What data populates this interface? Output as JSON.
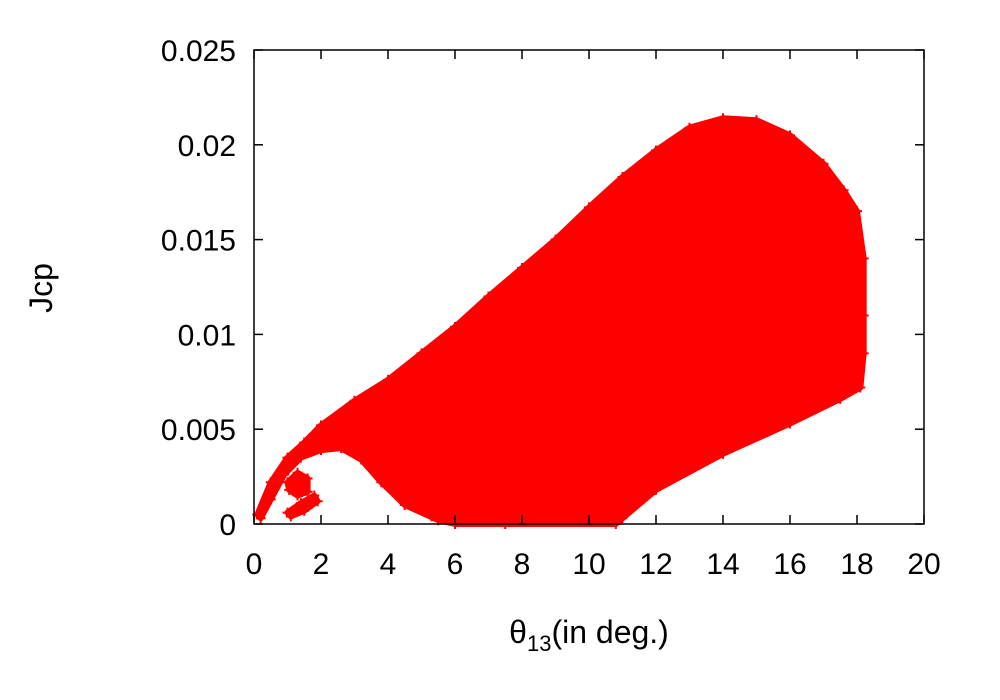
{
  "chart_data": {
    "type": "scatter",
    "title": "",
    "xlabel": {
      "symbol": "θ",
      "subscript": "13",
      "suffix": "(in deg.)"
    },
    "ylabel": "Jcp",
    "xlim": [
      0,
      20
    ],
    "ylim": [
      0,
      0.025
    ],
    "x_ticks": [
      "0",
      "2",
      "4",
      "6",
      "8",
      "10",
      "12",
      "14",
      "16",
      "18",
      "20"
    ],
    "y_ticks": [
      "0",
      "0.005",
      "0.01",
      "0.015",
      "0.02",
      "0.025"
    ],
    "grid": false,
    "legend": "none",
    "marker": "+",
    "color": "#ff0000",
    "series": [
      {
        "region": "main",
        "outline": [
          [
            0.1,
            0.0005
          ],
          [
            0.5,
            0.0022
          ],
          [
            1.0,
            0.0035
          ],
          [
            1.5,
            0.0043
          ],
          [
            2.0,
            0.0052
          ],
          [
            3.0,
            0.0065
          ],
          [
            4.0,
            0.0076
          ],
          [
            5.0,
            0.009
          ],
          [
            6.0,
            0.0104
          ],
          [
            7.0,
            0.012
          ],
          [
            8.0,
            0.0135
          ],
          [
            9.0,
            0.015
          ],
          [
            10.0,
            0.0167
          ],
          [
            11.0,
            0.0183
          ],
          [
            12.0,
            0.0197
          ],
          [
            13.0,
            0.0209
          ],
          [
            14.0,
            0.0214
          ],
          [
            15.0,
            0.0213
          ],
          [
            16.0,
            0.0205
          ],
          [
            17.0,
            0.019
          ],
          [
            17.6,
            0.0176
          ],
          [
            18.0,
            0.0165
          ],
          [
            18.2,
            0.014
          ],
          [
            18.2,
            0.011
          ],
          [
            18.2,
            0.009
          ],
          [
            18.1,
            0.0072
          ],
          [
            17.5,
            0.0066
          ],
          [
            16.0,
            0.0053
          ],
          [
            14.0,
            0.0037
          ],
          [
            12.0,
            0.0018
          ],
          [
            11.0,
            0.0003
          ],
          [
            10.8,
            0.0
          ],
          [
            7.5,
            0.0
          ],
          [
            6.0,
            0.0
          ],
          [
            5.5,
            0.0002
          ],
          [
            4.5,
            0.001
          ],
          [
            3.8,
            0.0022
          ],
          [
            3.2,
            0.0034
          ],
          [
            2.6,
            0.004
          ],
          [
            2.0,
            0.0039
          ],
          [
            1.4,
            0.0035
          ],
          [
            0.9,
            0.0026
          ],
          [
            0.5,
            0.0013
          ],
          [
            0.2,
            0.0003
          ]
        ]
      },
      {
        "region": "island-1",
        "outline": [
          [
            1.0,
            0.0022
          ],
          [
            1.3,
            0.0027
          ],
          [
            1.6,
            0.0024
          ],
          [
            1.6,
            0.0017
          ],
          [
            1.3,
            0.0015
          ],
          [
            1.05,
            0.0018
          ]
        ]
      },
      {
        "region": "island-2",
        "outline": [
          [
            1.0,
            0.0006
          ],
          [
            1.4,
            0.0011
          ],
          [
            1.8,
            0.0015
          ],
          [
            1.9,
            0.0012
          ],
          [
            1.5,
            0.0007
          ],
          [
            1.1,
            0.0004
          ]
        ]
      },
      {
        "region": "streak-1",
        "outline": [
          [
            3.3,
            0.0042
          ],
          [
            4.4,
            0.0025
          ],
          [
            5.6,
            0.0011
          ],
          [
            5.7,
            0.0014
          ],
          [
            4.6,
            0.0029
          ],
          [
            3.5,
            0.0045
          ]
        ]
      },
      {
        "region": "streak-2",
        "outline": [
          [
            3.5,
            0.0036
          ],
          [
            4.6,
            0.0019
          ],
          [
            5.5,
            0.0007
          ],
          [
            5.6,
            0.001
          ],
          [
            4.7,
            0.0022
          ],
          [
            3.6,
            0.0039
          ]
        ]
      },
      {
        "region": "streak-3",
        "outline": [
          [
            4.5,
            0.0012
          ],
          [
            5.3,
            0.0004
          ],
          [
            5.5,
            0.0006
          ],
          [
            4.7,
            0.0015
          ]
        ]
      }
    ]
  }
}
